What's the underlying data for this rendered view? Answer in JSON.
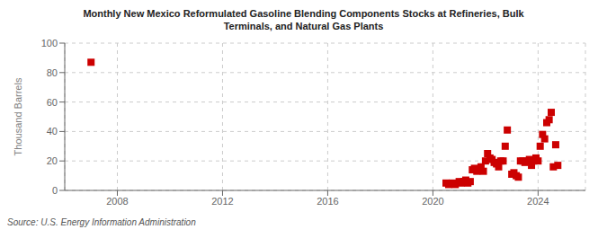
{
  "chart_data": {
    "type": "scatter",
    "title": "Monthly New Mexico Reformulated Gasoline Blending Components Stocks at Refineries, Bulk\nTerminals, and Natural Gas Plants",
    "ylabel": "Thousand Barrels",
    "annotations": [
      "Source: U.S. Energy Information Administration"
    ],
    "color": "#cc0000",
    "marker": "square",
    "grid": true,
    "xlim": [
      2006.0,
      2025.8
    ],
    "xticks": [
      2008,
      2012,
      2016,
      2020,
      2024
    ],
    "ylim": [
      0,
      100
    ],
    "yticks": [
      0,
      20,
      40,
      60,
      80,
      100
    ],
    "x": [
      2007.0,
      2020.5,
      2020.6,
      2020.75,
      2020.85,
      2021.0,
      2021.08,
      2021.17,
      2021.25,
      2021.33,
      2021.42,
      2021.5,
      2021.58,
      2021.67,
      2021.75,
      2021.83,
      2021.92,
      2022.0,
      2022.08,
      2022.17,
      2022.25,
      2022.33,
      2022.42,
      2022.5,
      2022.58,
      2022.67,
      2022.75,
      2022.83,
      2023.0,
      2023.08,
      2023.17,
      2023.25,
      2023.33,
      2023.42,
      2023.5,
      2023.58,
      2023.67,
      2023.75,
      2023.83,
      2023.92,
      2024.0,
      2024.08,
      2024.17,
      2024.25,
      2024.33,
      2024.42,
      2024.5,
      2024.58,
      2024.67,
      2024.75
    ],
    "values": [
      87,
      5,
      4,
      5,
      4,
      6,
      5,
      6,
      7,
      5,
      6,
      14,
      15,
      13,
      14,
      16,
      13,
      20,
      25,
      22,
      21,
      19,
      18,
      16,
      20,
      20,
      30,
      41,
      11,
      12,
      10,
      9,
      20,
      20,
      19,
      20,
      21,
      17,
      20,
      22,
      20,
      30,
      38,
      35,
      46,
      48,
      53,
      16,
      31,
      17
    ]
  }
}
